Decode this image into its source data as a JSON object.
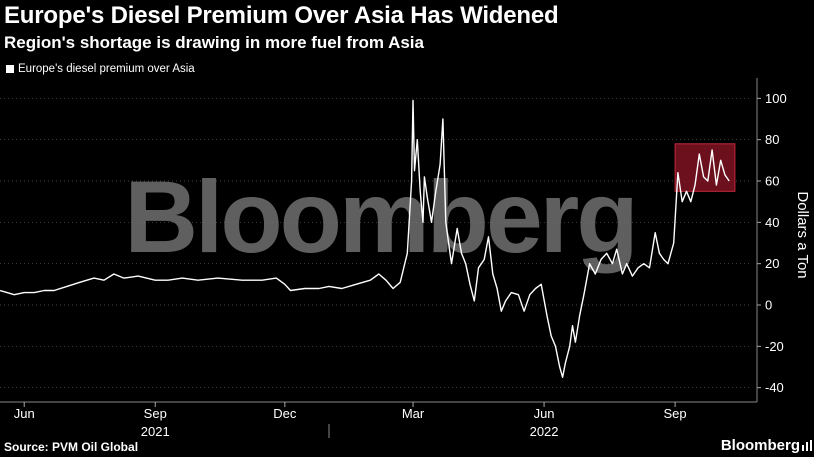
{
  "header": {
    "title": "Europe's Diesel Premium Over Asia Has Widened",
    "subtitle": "Region's shortage is drawing in more fuel from Asia"
  },
  "footer": {
    "source": "Source: PVM Oil Global",
    "brand": "Bloomberg"
  },
  "watermark": "Bloomberg",
  "colors": {
    "background": "#000000",
    "line": "#ffffff",
    "highlight_fill": "#8b1526",
    "highlight_stroke": "#c0283c",
    "gridline": "#5a5a5a"
  },
  "chart_data": {
    "type": "line",
    "title": "Europe's Diesel Premium Over Asia Has Widened",
    "subtitle": "Region's shortage is drawing in more fuel from Asia",
    "ylabel": "Dollars a Ton",
    "ylim": [
      -45,
      105
    ],
    "y_ticks": [
      -40,
      -20,
      0,
      20,
      40,
      60,
      80,
      100
    ],
    "y_axis_side": "right",
    "xlim": [
      "2021-05-15",
      "2022-10-25"
    ],
    "x_ticks": [
      {
        "label": "Jun",
        "date": "2021-06-01"
      },
      {
        "label": "Sep",
        "date": "2021-09-01"
      },
      {
        "label": "Dec",
        "date": "2021-12-01"
      },
      {
        "label": "Mar",
        "date": "2022-03-01"
      },
      {
        "label": "Jun",
        "date": "2022-06-01"
      },
      {
        "label": "Sep",
        "date": "2022-09-01"
      }
    ],
    "year_labels": [
      {
        "label": "2021",
        "date": "2021-09-01"
      },
      {
        "label": "2022",
        "date": "2022-06-01"
      }
    ],
    "year_divider_date": "2022-01-01",
    "grid": "horizontal",
    "legend_position": "top-left",
    "highlight": {
      "x_start": "2022-09-01",
      "x_end": "2022-10-13",
      "y_start": 55,
      "y_end": 78
    },
    "series": [
      {
        "name": "Europe's diesel premium over Asia",
        "points": [
          [
            "2021-05-15",
            7
          ],
          [
            "2021-05-20",
            6
          ],
          [
            "2021-05-25",
            5
          ],
          [
            "2021-06-01",
            6
          ],
          [
            "2021-06-08",
            6
          ],
          [
            "2021-06-15",
            7
          ],
          [
            "2021-06-22",
            7
          ],
          [
            "2021-07-01",
            9
          ],
          [
            "2021-07-10",
            11
          ],
          [
            "2021-07-20",
            13
          ],
          [
            "2021-07-27",
            12
          ],
          [
            "2021-08-03",
            15
          ],
          [
            "2021-08-10",
            13
          ],
          [
            "2021-08-20",
            14
          ],
          [
            "2021-09-01",
            12
          ],
          [
            "2021-09-10",
            12
          ],
          [
            "2021-09-20",
            13
          ],
          [
            "2021-10-01",
            12
          ],
          [
            "2021-10-15",
            13
          ],
          [
            "2021-11-01",
            12
          ],
          [
            "2021-11-15",
            12
          ],
          [
            "2021-11-25",
            13
          ],
          [
            "2021-12-01",
            10
          ],
          [
            "2021-12-05",
            7
          ],
          [
            "2021-12-15",
            8
          ],
          [
            "2021-12-25",
            8
          ],
          [
            "2022-01-01",
            9
          ],
          [
            "2022-01-10",
            8
          ],
          [
            "2022-01-20",
            10
          ],
          [
            "2022-01-30",
            12
          ],
          [
            "2022-02-05",
            15
          ],
          [
            "2022-02-10",
            12
          ],
          [
            "2022-02-15",
            8
          ],
          [
            "2022-02-20",
            11
          ],
          [
            "2022-02-25",
            25
          ],
          [
            "2022-02-28",
            60
          ],
          [
            "2022-03-01",
            99
          ],
          [
            "2022-03-02",
            65
          ],
          [
            "2022-03-04",
            80
          ],
          [
            "2022-03-06",
            55
          ],
          [
            "2022-03-08",
            40
          ],
          [
            "2022-03-09",
            62
          ],
          [
            "2022-03-11",
            52
          ],
          [
            "2022-03-14",
            40
          ],
          [
            "2022-03-17",
            55
          ],
          [
            "2022-03-20",
            68
          ],
          [
            "2022-03-22",
            90
          ],
          [
            "2022-03-24",
            40
          ],
          [
            "2022-03-26",
            30
          ],
          [
            "2022-03-28",
            20
          ],
          [
            "2022-04-01",
            37
          ],
          [
            "2022-04-04",
            25
          ],
          [
            "2022-04-07",
            20
          ],
          [
            "2022-04-10",
            10
          ],
          [
            "2022-04-13",
            2
          ],
          [
            "2022-04-16",
            18
          ],
          [
            "2022-04-20",
            22
          ],
          [
            "2022-04-23",
            33
          ],
          [
            "2022-04-26",
            15
          ],
          [
            "2022-04-29",
            8
          ],
          [
            "2022-05-02",
            -3
          ],
          [
            "2022-05-05",
            2
          ],
          [
            "2022-05-09",
            6
          ],
          [
            "2022-05-14",
            5
          ],
          [
            "2022-05-18",
            -3
          ],
          [
            "2022-05-22",
            5
          ],
          [
            "2022-05-26",
            8
          ],
          [
            "2022-05-30",
            10
          ],
          [
            "2022-06-03",
            -5
          ],
          [
            "2022-06-06",
            -15
          ],
          [
            "2022-06-09",
            -20
          ],
          [
            "2022-06-12",
            -30
          ],
          [
            "2022-06-14",
            -35
          ],
          [
            "2022-06-16",
            -28
          ],
          [
            "2022-06-19",
            -20
          ],
          [
            "2022-06-21",
            -10
          ],
          [
            "2022-06-23",
            -18
          ],
          [
            "2022-06-26",
            -5
          ],
          [
            "2022-06-29",
            5
          ],
          [
            "2022-07-03",
            20
          ],
          [
            "2022-07-07",
            15
          ],
          [
            "2022-07-11",
            22
          ],
          [
            "2022-07-15",
            25
          ],
          [
            "2022-07-19",
            20
          ],
          [
            "2022-07-22",
            27
          ],
          [
            "2022-07-26",
            15
          ],
          [
            "2022-07-29",
            20
          ],
          [
            "2022-08-02",
            14
          ],
          [
            "2022-08-06",
            18
          ],
          [
            "2022-08-10",
            20
          ],
          [
            "2022-08-14",
            18
          ],
          [
            "2022-08-18",
            35
          ],
          [
            "2022-08-21",
            25
          ],
          [
            "2022-08-24",
            22
          ],
          [
            "2022-08-27",
            20
          ],
          [
            "2022-08-31",
            30
          ],
          [
            "2022-09-03",
            64
          ],
          [
            "2022-09-06",
            50
          ],
          [
            "2022-09-09",
            55
          ],
          [
            "2022-09-12",
            50
          ],
          [
            "2022-09-15",
            58
          ],
          [
            "2022-09-18",
            73
          ],
          [
            "2022-09-21",
            62
          ],
          [
            "2022-09-24",
            60
          ],
          [
            "2022-09-27",
            75
          ],
          [
            "2022-09-30",
            58
          ],
          [
            "2022-10-03",
            70
          ],
          [
            "2022-10-06",
            63
          ],
          [
            "2022-10-09",
            60
          ]
        ]
      }
    ]
  }
}
